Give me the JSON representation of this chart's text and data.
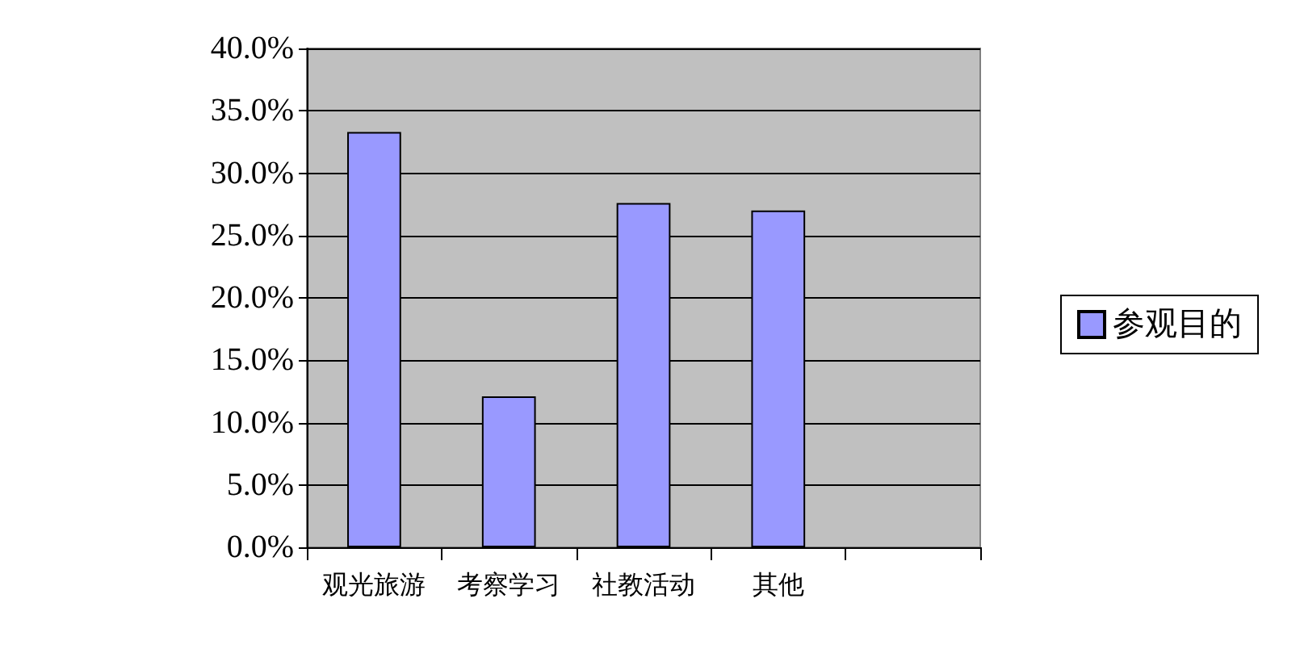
{
  "chart_data": {
    "type": "bar",
    "categories": [
      "观光旅游",
      "考察学习",
      "社教活动",
      "其他",
      null
    ],
    "series": [
      {
        "name": "参观目的",
        "color": "#9999ff",
        "values": [
          33.3,
          12.1,
          27.6,
          27.0,
          null
        ]
      }
    ],
    "ylim": [
      0,
      40
    ],
    "yticks": [
      {
        "value": 0,
        "label": "0.0%"
      },
      {
        "value": 5,
        "label": "5.0%"
      },
      {
        "value": 10,
        "label": "10.0%"
      },
      {
        "value": 15,
        "label": "15.0%"
      },
      {
        "value": 20,
        "label": "20.0%"
      },
      {
        "value": 25,
        "label": "25.0%"
      },
      {
        "value": 30,
        "label": "30.0%"
      },
      {
        "value": 35,
        "label": "35.0%"
      },
      {
        "value": 40,
        "label": "40.0%"
      }
    ],
    "grid": "y",
    "legend": "right"
  }
}
